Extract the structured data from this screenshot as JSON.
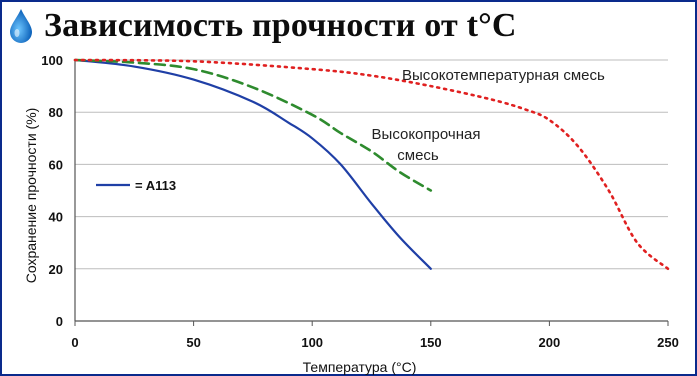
{
  "header": {
    "title": "Зависимость прочности от t°C",
    "icon": "water-drop-icon"
  },
  "colors": {
    "frame": "#0a2a8c",
    "a113": "#1f3fa6",
    "high_strength": "#2e8b2e",
    "high_temp": "#e02020",
    "grid": "#bdbdbd"
  },
  "chart_data": {
    "type": "line",
    "title": "Зависимость прочности от t°C",
    "xlabel": "Температура (°C)",
    "ylabel": "Сохранение прочности (%)",
    "xlim": [
      0,
      250
    ],
    "ylim": [
      0,
      100
    ],
    "xticks": [
      "0",
      "50",
      "100",
      "150",
      "200",
      "250"
    ],
    "yticks": [
      "0",
      "20",
      "40",
      "60",
      "80",
      "100"
    ],
    "grid": "horizontal",
    "legend": {
      "placement": "left-middle",
      "entries": [
        "A113"
      ]
    },
    "series": [
      {
        "name": "A113",
        "style": "solid",
        "x": [
          0,
          25,
          50,
          75,
          90,
          100,
          112,
          125,
          137,
          150
        ],
        "y": [
          100,
          97.5,
          92.5,
          84,
          76,
          70,
          60,
          45,
          32,
          20
        ]
      },
      {
        "name": "Высокопрочная смесь",
        "style": "dashed",
        "x": [
          0,
          25,
          50,
          75,
          100,
          112,
          125,
          137,
          150
        ],
        "y": [
          100,
          99,
          96.5,
          89.5,
          79,
          72,
          65,
          57,
          50
        ]
      },
      {
        "name": "Высокотемпературная смесь",
        "style": "dotted",
        "x": [
          0,
          50,
          100,
          125,
          150,
          175,
          190,
          200,
          212,
          225,
          237,
          250
        ],
        "y": [
          100,
          99.5,
          96.5,
          94,
          90,
          85,
          81,
          77,
          67,
          50,
          30,
          20
        ]
      }
    ],
    "annotations": [
      {
        "text": "Высокотемпературная смесь",
        "series": "Высокотемпературная смесь"
      },
      {
        "text": "Высокопрочная",
        "series": "Высокопрочная смесь"
      },
      {
        "text": "смесь",
        "series": "Высокопрочная смесь"
      }
    ]
  }
}
